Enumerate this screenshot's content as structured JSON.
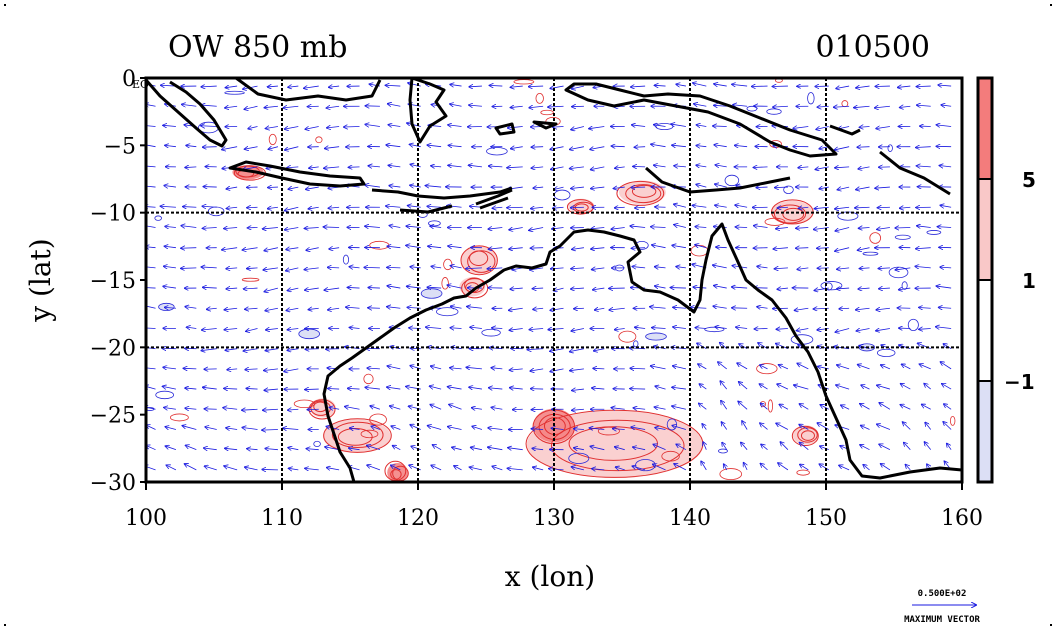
{
  "chart_data": {
    "type": "heatmap",
    "title_left": "OW 850 mb",
    "title_right": "010500",
    "xlabel": "x (lon)",
    "ylabel": "y (lat)",
    "xlim": [
      100,
      160
    ],
    "ylim": [
      -30,
      0
    ],
    "x_ticks": [
      "100",
      "110",
      "120",
      "130",
      "140",
      "150",
      "160"
    ],
    "y_ticks": [
      "0",
      "−5",
      "−10",
      "−15",
      "−20",
      "−25",
      "−30"
    ],
    "eq_label": "EQ",
    "gridlines": true,
    "colorbar": {
      "levels": [
        "5",
        "1",
        "−1"
      ],
      "colors": [
        "#f37c7c",
        "#f9c8c8",
        "#ffffff",
        "#dcdff5"
      ]
    },
    "vector_legend": {
      "value": "0.500E+02",
      "label": "MAXIMUM VECTOR"
    },
    "colors": {
      "positive_contour": "#e03030",
      "negative_contour": "#2a2ad8",
      "vector": "#1a1ae0",
      "coastline": "#000000"
    }
  }
}
